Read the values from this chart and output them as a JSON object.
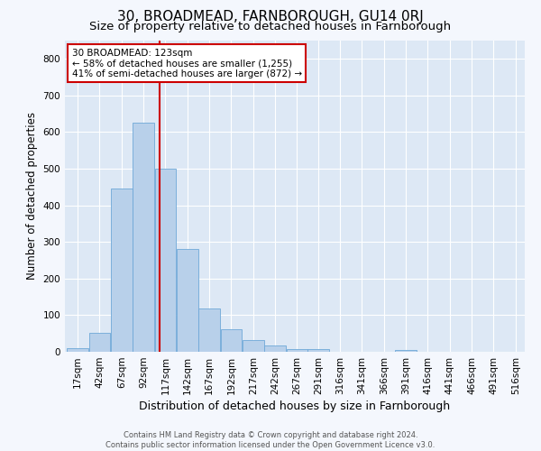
{
  "title": "30, BROADMEAD, FARNBOROUGH, GU14 0RJ",
  "subtitle": "Size of property relative to detached houses in Farnborough",
  "xlabel": "Distribution of detached houses by size in Farnborough",
  "ylabel": "Number of detached properties",
  "bar_color": "#b8d0ea",
  "bar_edge_color": "#6ea8d8",
  "fig_background_color": "#f4f7fd",
  "ax_background_color": "#dde8f5",
  "vline_color": "#cc0000",
  "vline_x": 123,
  "annotation_text": "30 BROADMEAD: 123sqm\n← 58% of detached houses are smaller (1,255)\n41% of semi-detached houses are larger (872) →",
  "annotation_box_color": "#ffffff",
  "annotation_box_edge": "#cc0000",
  "bins": [
    17,
    42,
    67,
    92,
    117,
    142,
    167,
    192,
    217,
    242,
    267,
    291,
    316,
    341,
    366,
    391,
    416,
    441,
    466,
    491,
    516
  ],
  "counts": [
    10,
    52,
    447,
    625,
    500,
    280,
    118,
    62,
    33,
    18,
    8,
    8,
    0,
    0,
    0,
    5,
    0,
    0,
    0,
    0
  ],
  "ylim": [
    0,
    850
  ],
  "yticks": [
    0,
    100,
    200,
    300,
    400,
    500,
    600,
    700,
    800
  ],
  "footer_line1": "Contains HM Land Registry data © Crown copyright and database right 2024.",
  "footer_line2": "Contains public sector information licensed under the Open Government Licence v3.0.",
  "grid_color": "#ffffff",
  "title_fontsize": 11,
  "subtitle_fontsize": 9.5,
  "tick_label_fontsize": 7.5,
  "ylabel_fontsize": 8.5,
  "xlabel_fontsize": 9,
  "footer_fontsize": 6,
  "annotation_fontsize": 7.5
}
